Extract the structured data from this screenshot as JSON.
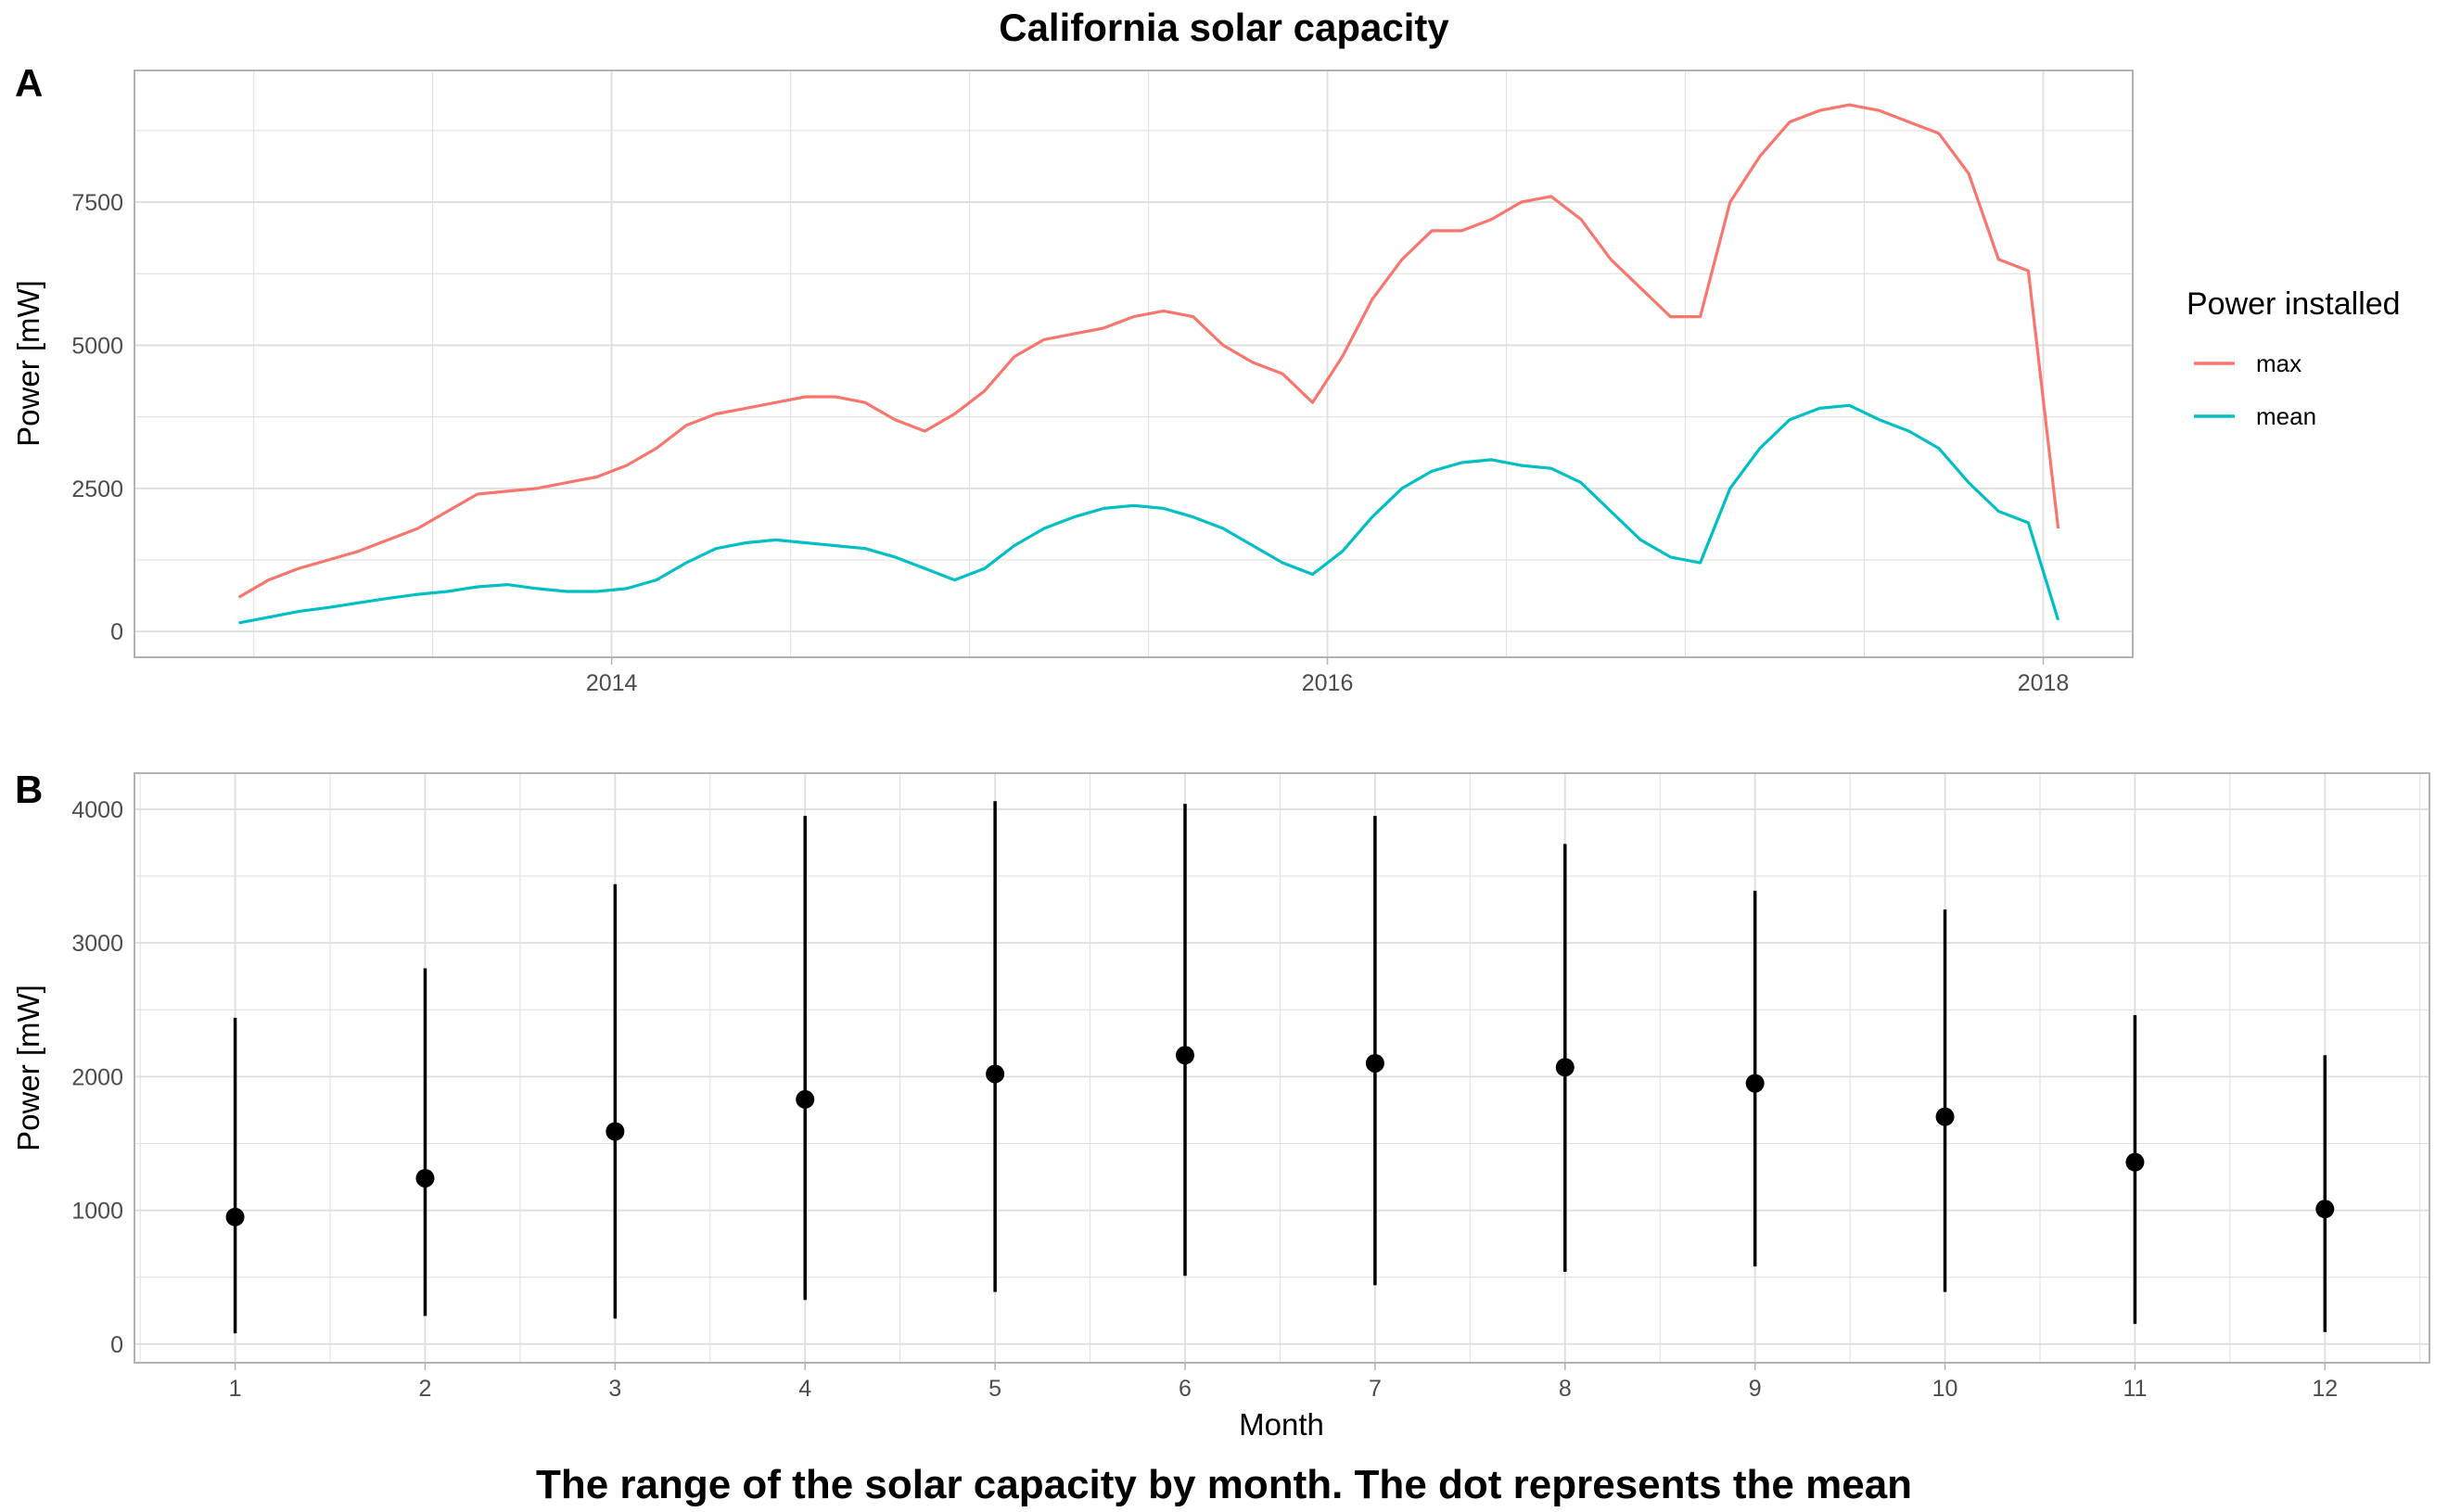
{
  "title": "California solar capacity",
  "caption": "The range of the solar capacity by month. The dot represents the mean",
  "colors": {
    "max": "#F8766D",
    "mean": "#00BFC4",
    "points": "#000000",
    "grid": "#dedede",
    "panel_border": "#b3b3b3"
  },
  "chart_data": [
    {
      "panel_label": "A",
      "type": "line",
      "xlabel": "",
      "ylabel": "Power [mW]",
      "x_ticks": [
        "2014",
        "2016",
        "2018"
      ],
      "y_ticks": [
        0,
        2500,
        5000,
        7500
      ],
      "ylim": [
        -450,
        9800
      ],
      "xlim": [
        "2012-09",
        "2018-04"
      ],
      "grid": true,
      "legend": {
        "title": "Power installed",
        "position": "right",
        "entries": [
          "max",
          "mean"
        ]
      },
      "x": [
        "2012-12",
        "2013-01",
        "2013-02",
        "2013-03",
        "2013-04",
        "2013-05",
        "2013-06",
        "2013-07",
        "2013-08",
        "2013-09",
        "2013-10",
        "2013-11",
        "2013-12",
        "2014-01",
        "2014-02",
        "2014-03",
        "2014-04",
        "2014-05",
        "2014-06",
        "2014-07",
        "2014-08",
        "2014-09",
        "2014-10",
        "2014-11",
        "2014-12",
        "2015-01",
        "2015-02",
        "2015-03",
        "2015-04",
        "2015-05",
        "2015-06",
        "2015-07",
        "2015-08",
        "2015-09",
        "2015-10",
        "2015-11",
        "2015-12",
        "2016-01",
        "2016-02",
        "2016-03",
        "2016-04",
        "2016-05",
        "2016-06",
        "2016-07",
        "2016-08",
        "2016-09",
        "2016-10",
        "2016-11",
        "2016-12",
        "2017-01",
        "2017-02",
        "2017-03",
        "2017-04",
        "2017-05",
        "2017-06",
        "2017-07",
        "2017-08",
        "2017-09",
        "2017-10",
        "2017-11",
        "2017-12",
        "2018-01"
      ],
      "series": [
        {
          "name": "max",
          "values": [
            600,
            900,
            1100,
            1250,
            1400,
            1600,
            1800,
            2100,
            2400,
            2450,
            2500,
            2600,
            2700,
            2900,
            3200,
            3600,
            3800,
            3900,
            4000,
            4100,
            4100,
            4000,
            3700,
            3500,
            3800,
            4200,
            4800,
            5100,
            5200,
            5300,
            5500,
            5600,
            5500,
            5000,
            4700,
            4500,
            4000,
            4800,
            5800,
            6500,
            7000,
            7000,
            7200,
            7500,
            7600,
            7200,
            6500,
            6000,
            5500,
            5500,
            7500,
            8300,
            8900,
            9100,
            9200,
            9100,
            8900,
            8700,
            8000,
            6500,
            6300,
            1800
          ]
        },
        {
          "name": "mean",
          "values": [
            150,
            250,
            350,
            420,
            500,
            580,
            650,
            700,
            780,
            820,
            750,
            700,
            700,
            750,
            900,
            1200,
            1450,
            1550,
            1600,
            1550,
            1500,
            1450,
            1300,
            1100,
            900,
            1100,
            1500,
            1800,
            2000,
            2150,
            2200,
            2150,
            2000,
            1800,
            1500,
            1200,
            1000,
            1400,
            2000,
            2500,
            2800,
            2950,
            3000,
            2900,
            2850,
            2600,
            2100,
            1600,
            1300,
            1200,
            2500,
            3200,
            3700,
            3900,
            3950,
            3700,
            3500,
            3200,
            2600,
            2100,
            1900,
            200
          ]
        }
      ]
    },
    {
      "panel_label": "B",
      "type": "pointrange",
      "xlabel": "Month",
      "ylabel": "Power [mW]",
      "categories": [
        "1",
        "2",
        "3",
        "4",
        "5",
        "6",
        "7",
        "8",
        "9",
        "10",
        "11",
        "12"
      ],
      "y_ticks": [
        0,
        1000,
        2000,
        3000,
        4000
      ],
      "ylim": [
        -140,
        4270
      ],
      "grid": true,
      "min": [
        80,
        210,
        190,
        330,
        390,
        510,
        440,
        540,
        580,
        390,
        150,
        90
      ],
      "mean": [
        950,
        1240,
        1590,
        1830,
        2020,
        2160,
        2100,
        2070,
        1950,
        1700,
        1360,
        1010
      ],
      "max": [
        2440,
        2810,
        3440,
        3950,
        4060,
        4040,
        3950,
        3740,
        3390,
        3250,
        2460,
        2160
      ]
    }
  ]
}
